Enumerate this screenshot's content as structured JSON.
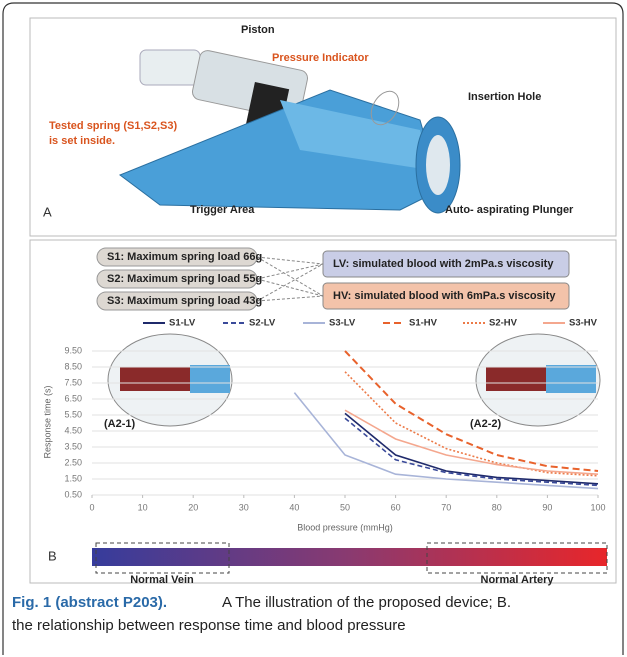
{
  "figure": {
    "panel_a": {
      "letter": "A",
      "labels": [
        "Piston",
        "Pressure Indicator",
        "Insertion Hole",
        "Tested spring (S1,S2,S3)",
        "is set inside.",
        "Trigger Area",
        "Auto- aspirating  Plunger"
      ]
    },
    "panel_b": {
      "letter": "B",
      "spring_boxes": [
        "S1:  Maximum spring load 66g",
        "S2:  Maximum spring load 55g",
        "S3:  Maximum spring load 43g"
      ],
      "viscosity_boxes": [
        "LV:  simulated blood with 2mPa.s viscosity",
        "HV:  simulated blood with 6mPa.s viscosity"
      ],
      "insets": [
        "(A2-1)",
        "(A2-2)"
      ],
      "bar_labels": [
        "Normal Vein",
        "Normal Artery"
      ]
    },
    "caption": {
      "label": "Fig. 1 (abstract P203).",
      "lines": [
        "A The illustration of the proposed device; B.",
        "the relationship between response time and blood pressure"
      ]
    }
  },
  "chart_data": {
    "type": "line",
    "x_label": "Blood pressure (mmHg)",
    "y_label": "Response time (s)",
    "x": [
      40,
      50,
      60,
      70,
      80,
      90,
      100
    ],
    "series": [
      {
        "name": "S1-LV",
        "color": "#1f2a6b",
        "dash": "",
        "values": [
          null,
          5.6,
          3.0,
          2.0,
          1.6,
          1.4,
          1.2
        ]
      },
      {
        "name": "S2-LV",
        "color": "#3a4a9a",
        "dash": "5 3",
        "values": [
          null,
          5.3,
          2.7,
          1.9,
          1.5,
          1.3,
          1.1
        ]
      },
      {
        "name": "S3-LV",
        "color": "#a8b4d8",
        "dash": "",
        "values": [
          6.9,
          3.0,
          1.8,
          1.5,
          1.3,
          1.1,
          0.9
        ]
      },
      {
        "name": "S1-HV",
        "color": "#e8622c",
        "dash": "7 4",
        "values": [
          null,
          9.5,
          6.2,
          4.3,
          3.0,
          2.3,
          2.0
        ]
      },
      {
        "name": "S2-HV",
        "color": "#ec7a48",
        "dash": "2 2",
        "values": [
          null,
          8.2,
          5.0,
          3.4,
          2.5,
          1.9,
          1.7
        ]
      },
      {
        "name": "S3-HV",
        "color": "#f4a78e",
        "dash": "",
        "values": [
          null,
          5.8,
          4.0,
          3.0,
          2.4,
          2.0,
          1.8
        ]
      }
    ],
    "xlim": [
      0,
      100
    ],
    "xticks": [
      0,
      10,
      20,
      30,
      40,
      50,
      60,
      70,
      80,
      90,
      100
    ],
    "ylim": [
      0.5,
      9.5
    ],
    "yticks": [
      {
        "value": 0.5,
        "label": "0.50"
      },
      {
        "value": 1.5,
        "label": "1.50"
      },
      {
        "value": 2.5,
        "label": "2.50"
      },
      {
        "value": 3.5,
        "label": "3.50"
      },
      {
        "value": 4.5,
        "label": "4.50"
      },
      {
        "value": 5.5,
        "label": "5.50"
      },
      {
        "value": 6.5,
        "label": "6.50"
      },
      {
        "value": 7.5,
        "label": "7.50"
      },
      {
        "value": 8.5,
        "label": "8.50"
      },
      {
        "value": 9.5,
        "label": "9.50"
      }
    ],
    "grid": true
  }
}
